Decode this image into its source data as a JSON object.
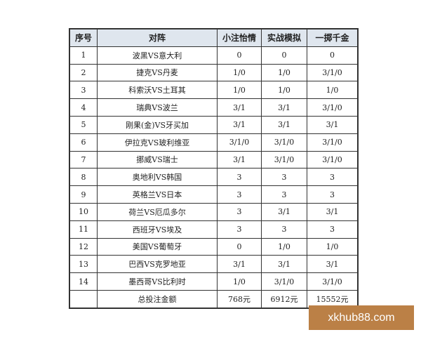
{
  "headers": [
    "序号",
    "对阵",
    "小注怡情",
    "实战模拟",
    "一掷千金"
  ],
  "rows": [
    [
      "1",
      "波黑VS意大利",
      "0",
      "0",
      "0"
    ],
    [
      "2",
      "捷克VS丹麦",
      "1/0",
      "1/0",
      "3/1/0"
    ],
    [
      "3",
      "科索沃VS土耳其",
      "1/0",
      "1/0",
      "1/0"
    ],
    [
      "4",
      "瑞典VS波兰",
      "3/1",
      "3/1",
      "3/1/0"
    ],
    [
      "5",
      "刚果(金)VS牙买加",
      "3/1",
      "3/1",
      "3/1"
    ],
    [
      "6",
      "伊拉克VS玻利维亚",
      "3/1/0",
      "3/1/0",
      "3/1/0"
    ],
    [
      "7",
      "挪威VS瑞士",
      "3/1",
      "3/1/0",
      "3/1/0"
    ],
    [
      "8",
      "奥地利VS韩国",
      "3",
      "3",
      "3"
    ],
    [
      "9",
      "英格兰VS日本",
      "3",
      "3",
      "3"
    ],
    [
      "10",
      "荷兰VS厄瓜多尔",
      "3",
      "3/1",
      "3/1"
    ],
    [
      "11",
      "西班牙VS埃及",
      "3",
      "3",
      "3"
    ],
    [
      "12",
      "美国VS葡萄牙",
      "0",
      "1/0",
      "1/0"
    ],
    [
      "13",
      "巴西VS克罗地亚",
      "3/1",
      "3/1",
      "3/1"
    ],
    [
      "14",
      "墨西哥VS比利时",
      "1/0",
      "3/1/0",
      "3/1/0"
    ],
    [
      "",
      "总投注金额",
      "768元",
      "6912元",
      "15552元"
    ]
  ],
  "watermark": "xkhub88.com",
  "colors": {
    "header_bg": "#dfe6ee",
    "watermark_bg": "#bb8046"
  }
}
